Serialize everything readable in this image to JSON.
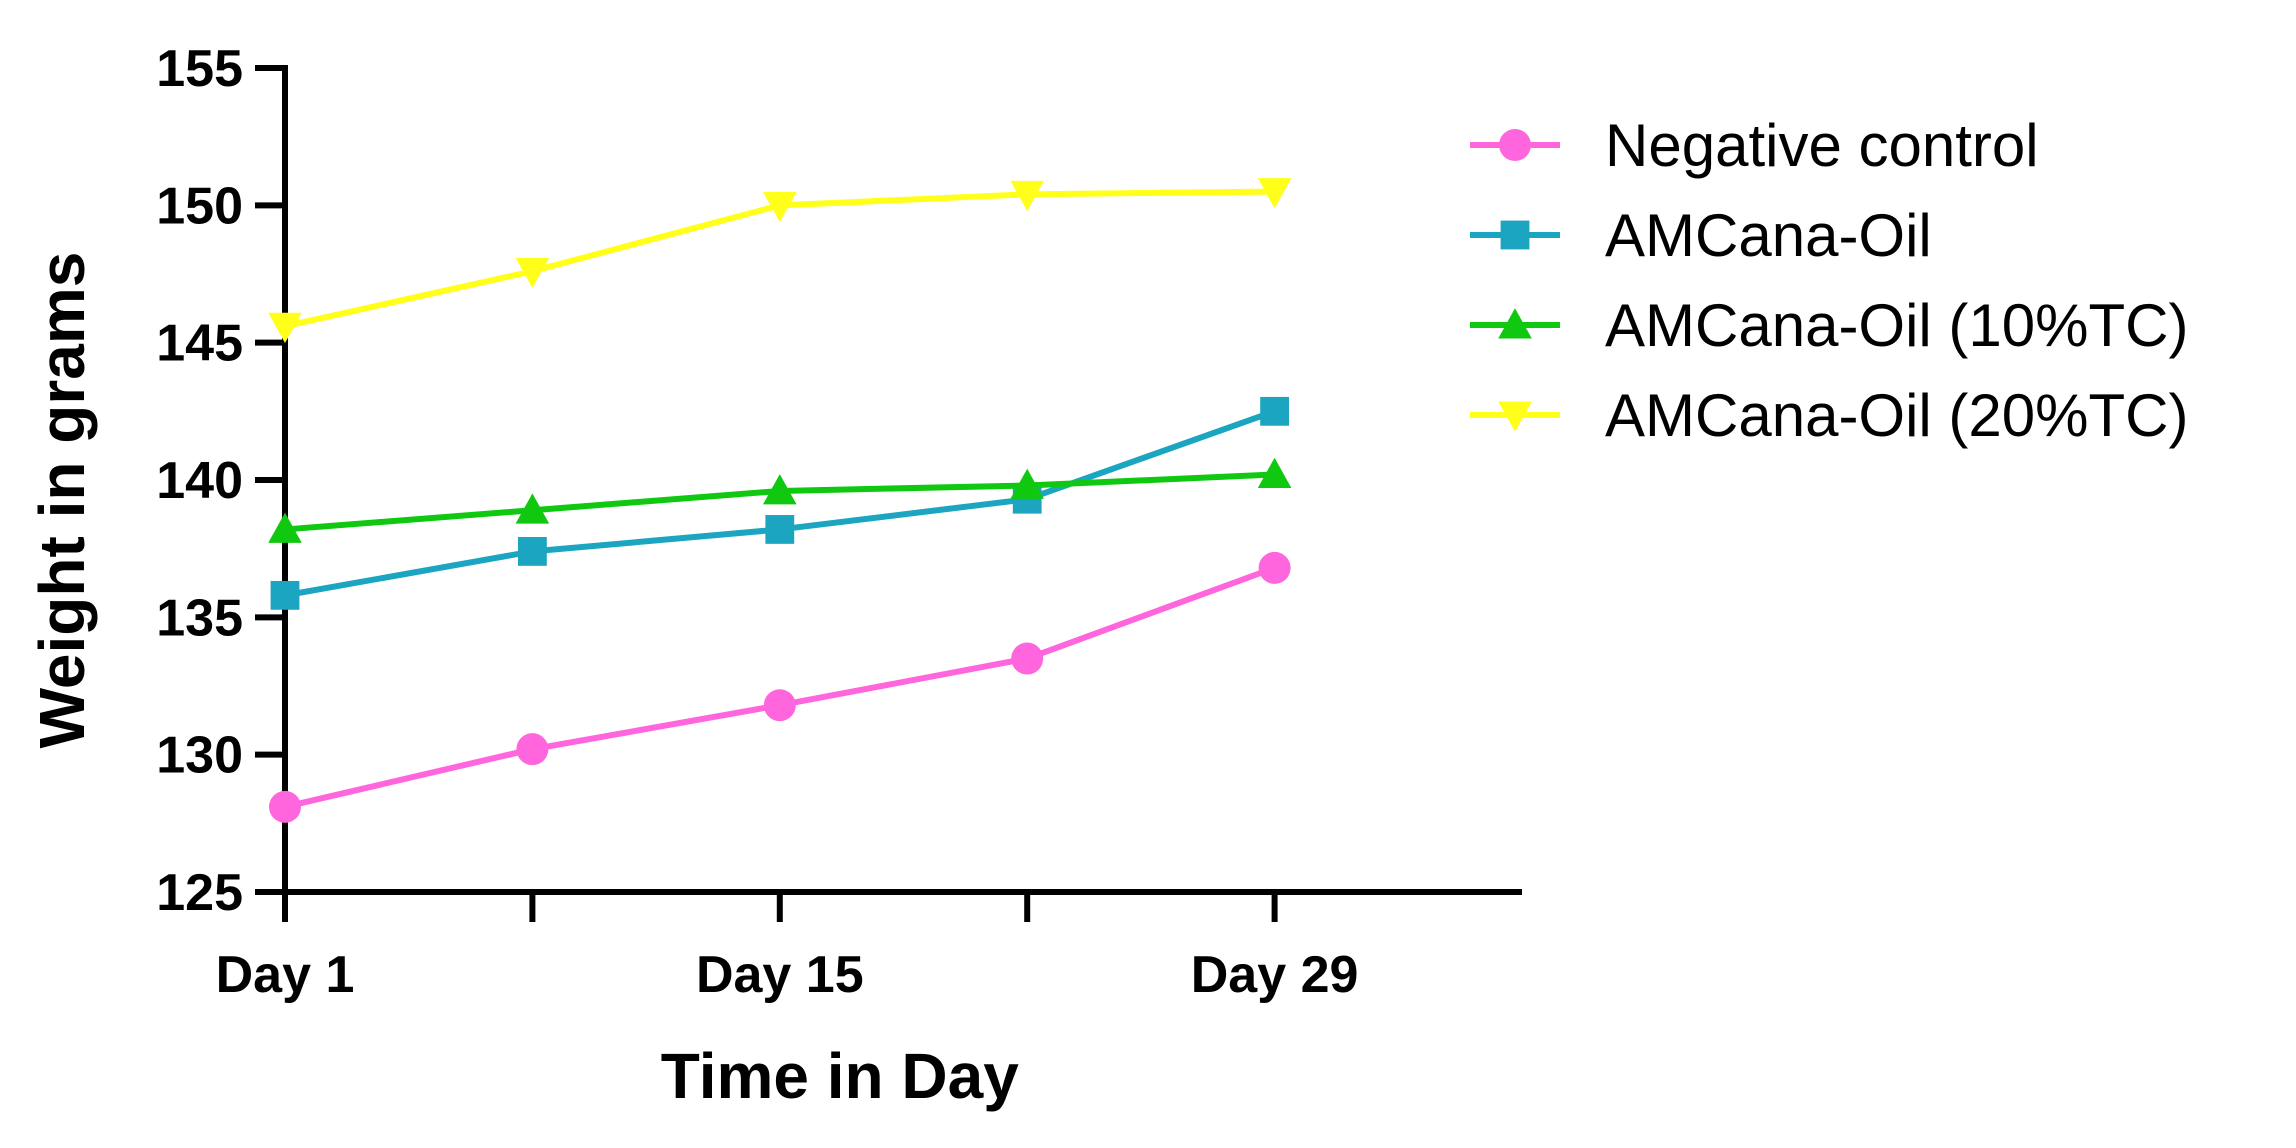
{
  "chart_data": {
    "type": "line",
    "title": "",
    "xlabel": "Time in Day",
    "ylabel": "Weight in grams",
    "x": [
      1,
      8,
      15,
      22,
      29
    ],
    "xlim": [
      1,
      36
    ],
    "xticks": [
      {
        "value": 1,
        "label": "Day 1"
      },
      {
        "value": 15,
        "label": "Day 15"
      },
      {
        "value": 29,
        "label": "Day 29"
      }
    ],
    "ylim": [
      125,
      155
    ],
    "yticks": [
      125,
      130,
      135,
      140,
      145,
      150,
      155
    ],
    "grid": false,
    "legend_position": "right",
    "series": [
      {
        "name": "Negative control",
        "color": "#ff66dd",
        "marker": "circle",
        "values": [
          128.1,
          130.2,
          131.8,
          133.5,
          136.8
        ]
      },
      {
        "name": "AMCana-Oil",
        "color": "#1ba5c1",
        "marker": "square",
        "values": [
          135.8,
          137.4,
          138.2,
          139.3,
          142.5
        ]
      },
      {
        "name": "AMCana-Oil (10%TC)",
        "color": "#10c810",
        "marker": "triangle-up",
        "values": [
          138.2,
          138.9,
          139.6,
          139.8,
          140.2
        ]
      },
      {
        "name": "AMCana-Oil (20%TC)",
        "color": "#ffff1a",
        "marker": "triangle-down",
        "values": [
          145.6,
          147.6,
          150.0,
          150.4,
          150.5
        ]
      }
    ]
  }
}
